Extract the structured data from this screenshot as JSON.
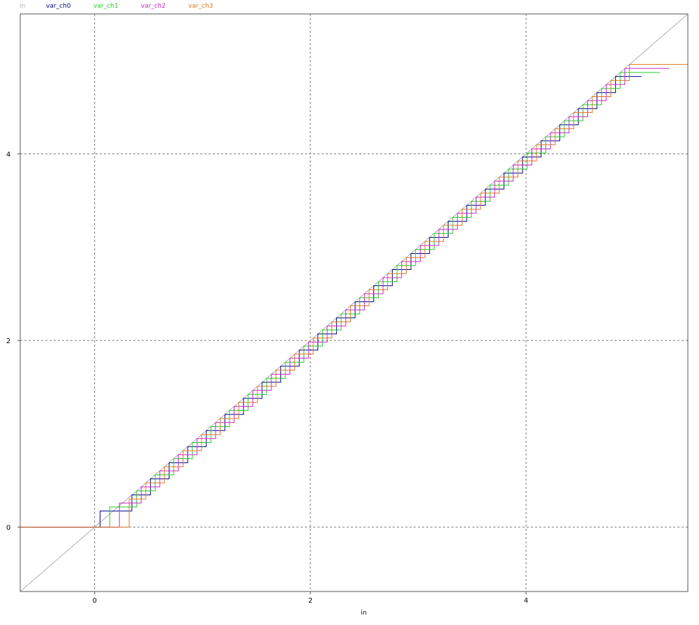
{
  "chart_data": {
    "type": "line",
    "title": "",
    "xlabel": "in",
    "ylabel": "",
    "xlim": [
      -0.69,
      5.5
    ],
    "ylim": [
      -0.69,
      5.5
    ],
    "x_ticks": [
      0,
      2,
      4
    ],
    "y_ticks": [
      0,
      2,
      4
    ],
    "x_tick_labels": [
      "0",
      "2",
      "4"
    ],
    "y_tick_labels": [
      "0",
      "2",
      "4"
    ],
    "grid": true,
    "legend_position": "top-left",
    "series": [
      {
        "name": "in",
        "kind": "identity",
        "color": "#b0b0b0"
      },
      {
        "name": "var_ch0",
        "kind": "staircase",
        "color": "#00008b",
        "offset": 0.0,
        "step": 0.1725,
        "steps": 28,
        "x_start": 0.05,
        "x_end": 5.07
      },
      {
        "name": "var_ch1",
        "kind": "staircase",
        "color": "#22cc22",
        "offset": 0.04313,
        "step": 0.1725,
        "steps": 28,
        "x_start": 0.14,
        "x_end": 5.24
      },
      {
        "name": "var_ch2",
        "kind": "staircase",
        "color": "#cc22cc",
        "offset": 0.08625,
        "step": 0.1725,
        "steps": 28,
        "x_start": 0.23,
        "x_end": 5.33
      },
      {
        "name": "var_ch3",
        "kind": "staircase",
        "color": "#dd7722",
        "offset": 0.12938,
        "step": 0.1725,
        "steps": 28,
        "x_start": 0.32,
        "x_end": 5.5
      }
    ]
  }
}
